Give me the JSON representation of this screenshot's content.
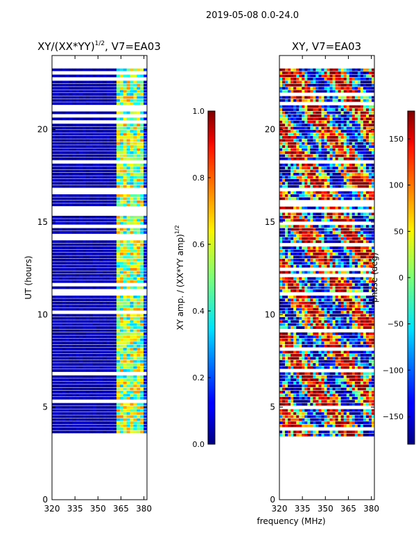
{
  "suptitle": "2019-05-08 0.0-24.0",
  "chart_data": [
    {
      "type": "heatmap",
      "title_main": "XY/(XX*YY)",
      "title_sup": "1/2",
      "title_suffix": ", V7=EA03",
      "xlabel": "",
      "ylabel": "UT (hours)",
      "xlim": [
        320,
        382
      ],
      "ylim": [
        0,
        24
      ],
      "xticks": [
        320,
        335,
        350,
        365,
        380
      ],
      "yticks": [
        0,
        5,
        10,
        15,
        20
      ],
      "data_ut_range": [
        3.4,
        23.3
      ],
      "colorbar": {
        "label_main": "XY amp. / (XX*YY amp)",
        "label_sup": "1/2",
        "range": [
          0.0,
          1.0
        ],
        "ticks": [
          "0.0",
          "0.2",
          "0.4",
          "0.6",
          "0.8",
          "1.0"
        ],
        "tick_values": [
          0.0,
          0.2,
          0.4,
          0.6,
          0.8,
          1.0
        ],
        "colormap": "jet"
      }
    },
    {
      "type": "heatmap",
      "title": "XY, V7=EA03",
      "xlabel": "frequency (MHz)",
      "ylabel": "",
      "xlim": [
        320,
        382
      ],
      "ylim": [
        0,
        24
      ],
      "xticks": [
        320,
        335,
        350,
        365,
        380
      ],
      "yticks": [
        0,
        5,
        10,
        15,
        20
      ],
      "data_ut_range": [
        3.4,
        23.3
      ],
      "colorbar": {
        "label": "phase (deg)",
        "range": [
          -180,
          180
        ],
        "ticks": [
          "−150",
          "−100",
          "−50",
          "0",
          "50",
          "100",
          "150"
        ],
        "tick_values": [
          -150,
          -100,
          -50,
          0,
          50,
          100,
          150
        ],
        "colormap": "jet"
      }
    }
  ]
}
